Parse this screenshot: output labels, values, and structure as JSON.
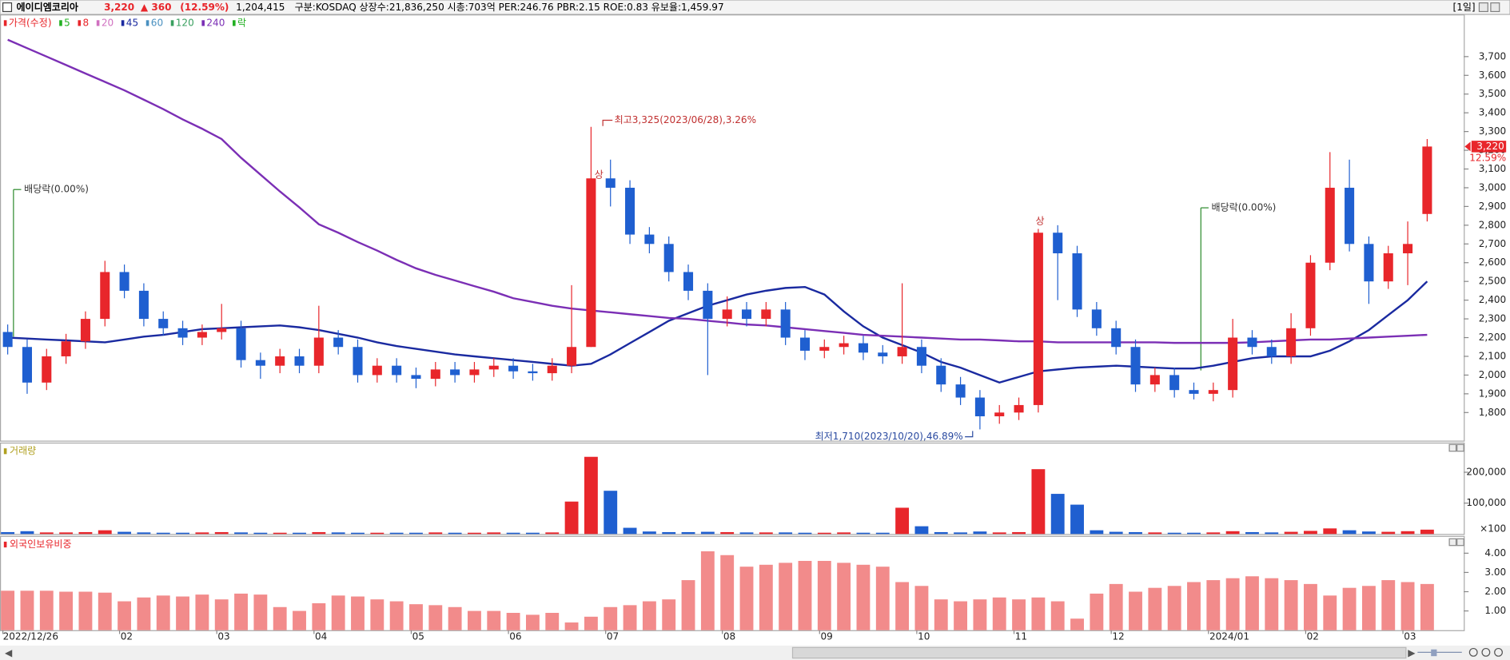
{
  "header": {
    "name": "에이디엠코리아",
    "price": "3,220",
    "change": "▲ 360",
    "change_pct": "(12.59%)",
    "volume": "1,204,415",
    "info": "구분:KOSDAQ 상장수:21,836,250 시총:703억 PER:246.76 PBR:2.15 ROE:0.83 유보율:1,459.97",
    "period": "[1일]"
  },
  "chart_data": [
    {
      "type": "candlestick",
      "grid": false,
      "up_color": "#e8262b",
      "down_color": "#1f5fd0",
      "categories": [
        "2022/12/26",
        null,
        null,
        null,
        null,
        null,
        "02",
        null,
        null,
        null,
        null,
        "03",
        null,
        null,
        null,
        null,
        "04",
        null,
        null,
        null,
        null,
        "05",
        null,
        null,
        null,
        null,
        "06",
        null,
        null,
        null,
        null,
        "07",
        null,
        null,
        null,
        null,
        null,
        "08",
        null,
        null,
        null,
        null,
        "09",
        null,
        null,
        null,
        null,
        "10",
        null,
        null,
        null,
        null,
        "11",
        null,
        null,
        null,
        null,
        "12",
        null,
        null,
        null,
        null,
        "2024/01",
        null,
        null,
        null,
        null,
        "02",
        null,
        null,
        null,
        null,
        "03",
        null
      ],
      "open": [
        2230,
        2150,
        1960,
        2100,
        2180,
        2300,
        2550,
        2450,
        2300,
        2250,
        2200,
        2230,
        2250,
        2080,
        2050,
        2100,
        2050,
        2200,
        2150,
        2000,
        2050,
        2000,
        1980,
        2030,
        2000,
        2030,
        2050,
        2020,
        2010,
        2050,
        2150,
        3050,
        3000,
        2750,
        2700,
        2550,
        2450,
        2300,
        2350,
        2300,
        2350,
        2200,
        2130,
        2150,
        2170,
        2120,
        2100,
        2150,
        2050,
        1950,
        1880,
        1780,
        1800,
        1840,
        2760,
        2650,
        2350,
        2250,
        2150,
        1950,
        2000,
        1920,
        1900,
        1920,
        2200,
        2150,
        2100,
        2250,
        2600,
        3000,
        2700,
        2500,
        2650,
        2860
      ],
      "high": [
        2270,
        2190,
        2140,
        2220,
        2340,
        2610,
        2590,
        2490,
        2340,
        2290,
        2270,
        2380,
        2290,
        2120,
        2140,
        2140,
        2370,
        2240,
        2190,
        2090,
        2090,
        2040,
        2070,
        2070,
        2070,
        2090,
        2090,
        2060,
        2090,
        2480,
        3325,
        3150,
        3040,
        2790,
        2740,
        2590,
        2490,
        2420,
        2390,
        2390,
        2390,
        2240,
        2190,
        2210,
        2210,
        2160,
        2490,
        2190,
        2090,
        1990,
        1920,
        1840,
        1880,
        2780,
        2800,
        2690,
        2390,
        2290,
        2190,
        2040,
        2040,
        1960,
        1960,
        2300,
        2240,
        2190,
        2330,
        2640,
        3190,
        3150,
        2740,
        2690,
        2820,
        3260
      ],
      "low": [
        2110,
        1900,
        1920,
        2060,
        2140,
        2260,
        2410,
        2260,
        2210,
        2160,
        2160,
        2190,
        2040,
        1980,
        2010,
        2010,
        2010,
        2110,
        1960,
        1960,
        1960,
        1930,
        1940,
        1960,
        1960,
        1990,
        1980,
        1970,
        1970,
        2010,
        2150,
        2900,
        2700,
        2650,
        2500,
        2400,
        2000,
        2260,
        2260,
        2260,
        2160,
        2080,
        2090,
        2110,
        2080,
        2060,
        2060,
        2010,
        1910,
        1840,
        1710,
        1740,
        1760,
        1800,
        2400,
        2310,
        2210,
        2110,
        1910,
        1910,
        1880,
        1870,
        1860,
        1880,
        2110,
        2060,
        2060,
        2210,
        2560,
        2660,
        2380,
        2460,
        2480,
        2820
      ],
      "close": [
        2150,
        1960,
        2100,
        2180,
        2300,
        2550,
        2450,
        2300,
        2250,
        2200,
        2230,
        2250,
        2080,
        2050,
        2100,
        2050,
        2200,
        2150,
        2000,
        2050,
        2000,
        1980,
        2030,
        2000,
        2030,
        2050,
        2020,
        2010,
        2050,
        2150,
        3050,
        3000,
        2750,
        2700,
        2550,
        2450,
        2300,
        2350,
        2300,
        2350,
        2200,
        2130,
        2150,
        2170,
        2120,
        2100,
        2150,
        2050,
        1950,
        1880,
        1780,
        1800,
        1840,
        2760,
        2650,
        2350,
        2250,
        2150,
        1950,
        2000,
        1920,
        1900,
        1920,
        2200,
        2150,
        2100,
        2250,
        2600,
        3000,
        2700,
        2500,
        2650,
        2700,
        3220
      ],
      "indicators": [
        {
          "name": "가격(수정)",
          "color": "#e8262b"
        },
        {
          "name": "5",
          "color": "#22b022"
        },
        {
          "name": "8",
          "color": "#e8262b"
        },
        {
          "name": "20",
          "color": "#d070c0"
        },
        {
          "name": "45",
          "color": "#1a2aa0",
          "values": [
            2200,
            2195,
            2190,
            2185,
            2180,
            2175,
            2190,
            2205,
            2215,
            2230,
            2245,
            2250,
            2255,
            2260,
            2265,
            2255,
            2240,
            2220,
            2200,
            2175,
            2155,
            2140,
            2125,
            2110,
            2100,
            2090,
            2080,
            2070,
            2060,
            2050,
            2060,
            2110,
            2170,
            2230,
            2290,
            2330,
            2370,
            2400,
            2430,
            2450,
            2465,
            2470,
            2430,
            2340,
            2260,
            2200,
            2160,
            2120,
            2070,
            2040,
            2000,
            1960,
            1990,
            2020,
            2030,
            2040,
            2045,
            2050,
            2045,
            2040,
            2035,
            2035,
            2050,
            2070,
            2090,
            2100,
            2100,
            2100,
            2130,
            2180,
            2240,
            2320,
            2400,
            2500
          ]
        },
        {
          "name": "60",
          "color": "#4a90c0"
        },
        {
          "name": "120",
          "color": "#3aa060"
        },
        {
          "name": "240",
          "color": "#7b2fb5",
          "values": [
            3790,
            3745,
            3700,
            3655,
            3610,
            3565,
            3520,
            3470,
            3420,
            3365,
            3315,
            3260,
            3160,
            3070,
            2980,
            2895,
            2805,
            2760,
            2710,
            2665,
            2615,
            2570,
            2535,
            2505,
            2475,
            2445,
            2410,
            2390,
            2370,
            2355,
            2345,
            2335,
            2325,
            2315,
            2305,
            2300,
            2290,
            2280,
            2270,
            2265,
            2255,
            2245,
            2235,
            2225,
            2215,
            2210,
            2205,
            2200,
            2195,
            2190,
            2190,
            2185,
            2180,
            2180,
            2175,
            2175,
            2175,
            2175,
            2175,
            2175,
            2172,
            2172,
            2172,
            2172,
            2175,
            2180,
            2185,
            2190,
            2190,
            2195,
            2200,
            2205,
            2210,
            2215
          ]
        },
        {
          "name": "락",
          "color": "#22b022"
        }
      ],
      "ylim": [
        1650,
        3920
      ],
      "yticks": [
        {
          "value": 1800,
          "label": "1,800"
        },
        {
          "value": 1900,
          "label": "1,900"
        },
        {
          "value": 2000,
          "label": "2,000"
        },
        {
          "value": 2100,
          "label": "2,100"
        },
        {
          "value": 2200,
          "label": "2,200"
        },
        {
          "value": 2300,
          "label": "2,300"
        },
        {
          "value": 2400,
          "label": "2,400"
        },
        {
          "value": 2500,
          "label": "2,500"
        },
        {
          "value": 2600,
          "label": "2,600"
        },
        {
          "value": 2700,
          "label": "2,700"
        },
        {
          "value": 2800,
          "label": "2,800"
        },
        {
          "value": 2900,
          "label": "2,900"
        },
        {
          "value": 3000,
          "label": "3,000"
        },
        {
          "value": 3100,
          "label": "3,100"
        },
        {
          "value": 3200,
          "label": "3,200"
        },
        {
          "value": 3300,
          "label": "3,300"
        },
        {
          "value": 3400,
          "label": "3,400"
        },
        {
          "value": 3500,
          "label": "3,500"
        },
        {
          "value": 3600,
          "label": "3,600"
        },
        {
          "value": 3700,
          "label": "3,700"
        }
      ],
      "last_price_label": "3,220",
      "last_change_label": "12.59%",
      "annotations": [
        "최고3,325(2023/06/28),3.26%",
        "최저1,710(2023/10/20),46.89%",
        "배당락(0.00%)",
        "배당락(0.00%)",
        "상",
        "상"
      ]
    },
    {
      "type": "bar",
      "title": "거래량",
      "title_color": "#b0a020",
      "values": [
        6000,
        9000,
        5000,
        5000,
        6000,
        12000,
        7000,
        5000,
        4000,
        4000,
        5000,
        6000,
        5000,
        4000,
        4000,
        4000,
        6000,
        5000,
        4000,
        4000,
        4000,
        4000,
        5000,
        4000,
        4000,
        5000,
        4000,
        4000,
        5000,
        105000,
        250000,
        140000,
        20000,
        8000,
        6000,
        6000,
        7000,
        6000,
        5000,
        5000,
        5000,
        4000,
        4000,
        5000,
        4000,
        4000,
        85000,
        25000,
        6000,
        5000,
        8000,
        5000,
        6000,
        210000,
        130000,
        95000,
        12000,
        7000,
        6000,
        5000,
        4000,
        4000,
        5000,
        9000,
        6000,
        5000,
        7000,
        10000,
        18000,
        12000,
        8000,
        7000,
        9000,
        14000
      ],
      "ylim": [
        0,
        290000
      ],
      "yticks": [
        {
          "value": 100000,
          "label": "100,000"
        },
        {
          "value": 200000,
          "label": "200,000"
        }
      ],
      "unit_label": "×100"
    },
    {
      "type": "bar",
      "title": "외국인보유비중",
      "title_color": "#e8262b",
      "color": "#f28b8b",
      "values": [
        2.05,
        2.05,
        2.05,
        2.0,
        2.0,
        1.95,
        1.5,
        1.7,
        1.8,
        1.75,
        1.85,
        1.6,
        1.9,
        1.85,
        1.2,
        1.0,
        1.4,
        1.8,
        1.75,
        1.6,
        1.5,
        1.35,
        1.3,
        1.2,
        1.0,
        1.0,
        0.9,
        0.8,
        0.9,
        0.4,
        0.7,
        1.2,
        1.3,
        1.5,
        1.6,
        2.6,
        4.1,
        3.9,
        3.3,
        3.4,
        3.5,
        3.6,
        3.6,
        3.5,
        3.4,
        3.3,
        2.5,
        2.3,
        1.6,
        1.5,
        1.6,
        1.7,
        1.6,
        1.7,
        1.5,
        0.6,
        1.9,
        2.4,
        2.0,
        2.2,
        2.3,
        2.5,
        2.6,
        2.7,
        2.8,
        2.7,
        2.6,
        2.4,
        1.8,
        2.2,
        2.3,
        2.6,
        2.5,
        2.4
      ],
      "ylim": [
        0,
        4.8
      ],
      "yticks": [
        {
          "value": 1,
          "label": "1.00"
        },
        {
          "value": 2,
          "label": "2.00"
        },
        {
          "value": 3,
          "label": "3.00"
        },
        {
          "value": 4,
          "label": "4.00"
        }
      ]
    }
  ]
}
